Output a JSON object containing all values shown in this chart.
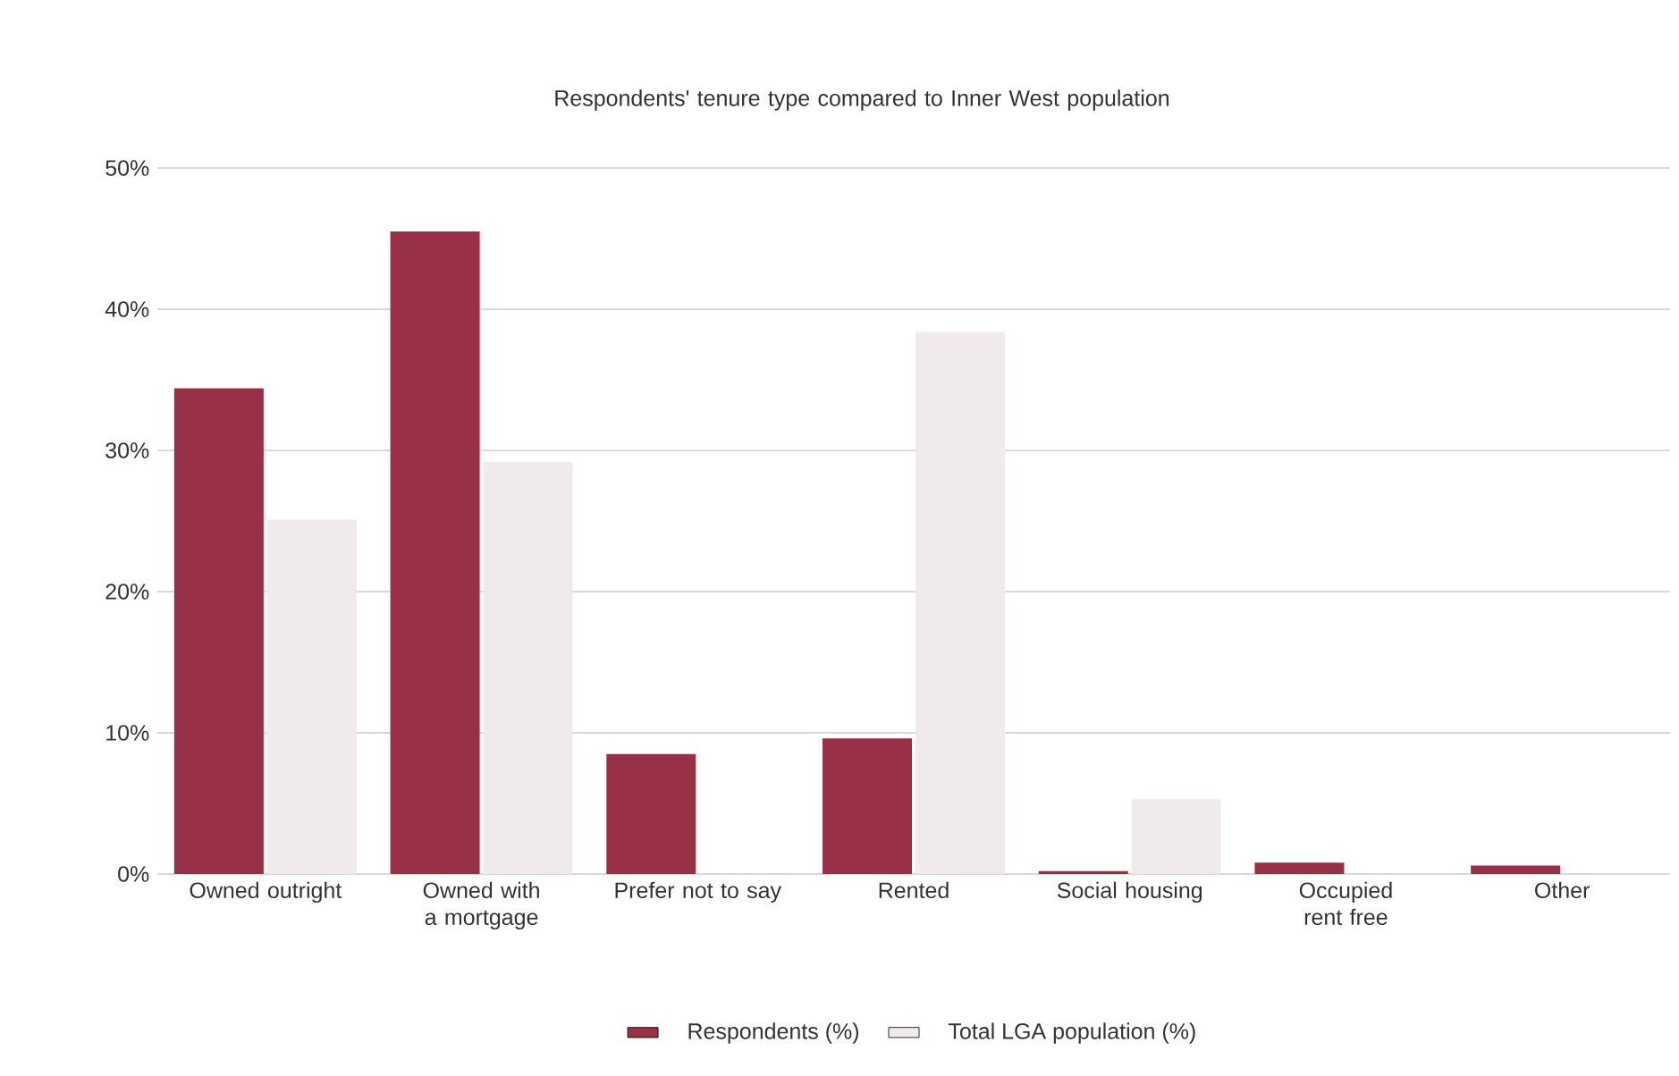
{
  "chart_data": {
    "type": "bar",
    "title": "Respondents' tenure type compared to Inner West population",
    "categories": [
      "Owned outright",
      "Owned with a mortgage",
      "Prefer not to say",
      "Rented",
      "Social housing",
      "Occupied rent free",
      "Other"
    ],
    "series": [
      {
        "name": "Respondents (%)",
        "color": "#983148",
        "values": [
          34.4,
          45.5,
          8.5,
          9.6,
          0.2,
          0.8,
          0.6
        ]
      },
      {
        "name": "Total LGA population (%)",
        "color": "#f0eaea",
        "values": [
          25.1,
          29.2,
          null,
          38.4,
          5.3,
          null,
          null
        ]
      }
    ],
    "ylim": [
      0,
      50
    ],
    "yticks": [
      {
        "value": 0,
        "label": "0%"
      },
      {
        "value": 10,
        "label": "10%"
      },
      {
        "value": 20,
        "label": "20%"
      },
      {
        "value": 30,
        "label": "30%"
      },
      {
        "value": 40,
        "label": "40%"
      },
      {
        "value": 50,
        "label": "50%"
      }
    ],
    "grid": "y",
    "legend": "bottom"
  }
}
